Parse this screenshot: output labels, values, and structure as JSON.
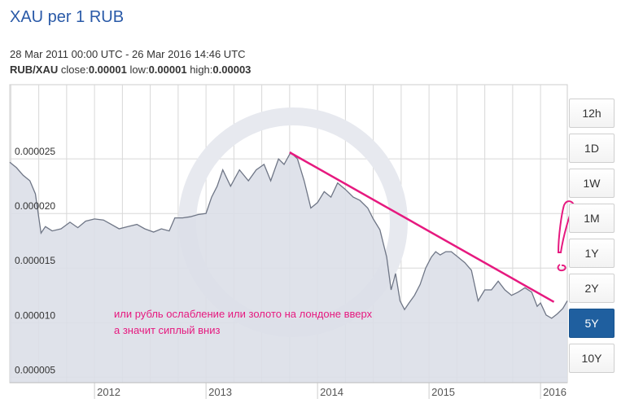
{
  "header": {
    "title": "XAU per 1 RUB",
    "date_range": "28 Mar 2011 00:00 UTC - 26 Mar 2016 14:46 UTC",
    "pair": "RUB/XAU",
    "close_label": "close:",
    "close_value": "0.00001",
    "low_label": "low:",
    "low_value": "0.00001",
    "high_label": "high:",
    "high_value": "0.00003"
  },
  "range_buttons": [
    {
      "label": "12h",
      "active": false
    },
    {
      "label": "1D",
      "active": false
    },
    {
      "label": "1W",
      "active": false
    },
    {
      "label": "1M",
      "active": false
    },
    {
      "label": "1Y",
      "active": false
    },
    {
      "label": "2Y",
      "active": false
    },
    {
      "label": "5Y",
      "active": true
    },
    {
      "label": "10Y",
      "active": false
    }
  ],
  "annotation": {
    "line1": "или рубль ослабление или золото на лондоне вверх",
    "line2": "а значит сиплый вниз",
    "color": "#e6197f"
  },
  "colors": {
    "area_fill": "#dcdfe8",
    "line": "#6f7686",
    "grid": "#d8d8d8",
    "accent": "#1f5f9f"
  },
  "chart_data": {
    "type": "area",
    "title": "XAU per 1 RUB",
    "xlabel": "",
    "ylabel": "",
    "ylim": [
      4.5e-06,
      3.18e-05
    ],
    "y_ticks": [
      {
        "value": 5e-06,
        "label": "0.000005"
      },
      {
        "value": 1e-05,
        "label": "0.000010"
      },
      {
        "value": 1.5e-05,
        "label": "0.000015"
      },
      {
        "value": 2e-05,
        "label": "0.000020"
      },
      {
        "value": 2.5e-05,
        "label": "0.000025"
      }
    ],
    "x_ticks": [
      {
        "value": 2012.0,
        "label": "2012"
      },
      {
        "value": 2013.0,
        "label": "2013"
      },
      {
        "value": 2014.0,
        "label": "2014"
      },
      {
        "value": 2015.0,
        "label": "2015"
      },
      {
        "value": 2016.0,
        "label": "2016"
      }
    ],
    "x": [
      2011.24,
      2011.3,
      2011.36,
      2011.42,
      2011.47,
      2011.52,
      2011.56,
      2011.62,
      2011.7,
      2011.78,
      2011.85,
      2011.92,
      2012.0,
      2012.08,
      2012.15,
      2012.22,
      2012.3,
      2012.38,
      2012.45,
      2012.53,
      2012.6,
      2012.67,
      2012.72,
      2012.79,
      2012.86,
      2012.93,
      2013.0,
      2013.05,
      2013.1,
      2013.15,
      2013.22,
      2013.3,
      2013.38,
      2013.45,
      2013.52,
      2013.58,
      2013.65,
      2013.7,
      2013.76,
      2013.82,
      2013.88,
      2013.94,
      2014.0,
      2014.06,
      2014.12,
      2014.18,
      2014.25,
      2014.32,
      2014.38,
      2014.45,
      2014.5,
      2014.56,
      2014.62,
      2014.66,
      2014.7,
      2014.74,
      2014.78,
      2014.82,
      2014.87,
      2014.92,
      2014.97,
      2015.02,
      2015.06,
      2015.1,
      2015.15,
      2015.2,
      2015.26,
      2015.32,
      2015.38,
      2015.44,
      2015.5,
      2015.56,
      2015.62,
      2015.68,
      2015.74,
      2015.8,
      2015.86,
      2015.92,
      2015.97,
      2016.0,
      2016.05,
      2016.1,
      2016.15,
      2016.2,
      2016.24
    ],
    "series": [
      {
        "values": [
          2.47e-05,
          2.42e-05,
          2.35e-05,
          2.3e-05,
          2.18e-05,
          1.82e-05,
          1.88e-05,
          1.84e-05,
          1.86e-05,
          1.92e-05,
          1.87e-05,
          1.93e-05,
          1.95e-05,
          1.94e-05,
          1.9e-05,
          1.86e-05,
          1.88e-05,
          1.9e-05,
          1.86e-05,
          1.83e-05,
          1.86e-05,
          1.84e-05,
          1.96e-05,
          1.96e-05,
          1.97e-05,
          1.99e-05,
          2e-05,
          2.15e-05,
          2.25e-05,
          2.4e-05,
          2.25e-05,
          2.4e-05,
          2.3e-05,
          2.4e-05,
          2.45e-05,
          2.3e-05,
          2.5e-05,
          2.45e-05,
          2.56e-05,
          2.5e-05,
          2.3e-05,
          2.05e-05,
          2.1e-05,
          2.2e-05,
          2.15e-05,
          2.28e-05,
          2.22e-05,
          2.15e-05,
          2.12e-05,
          2.05e-05,
          1.95e-05,
          1.85e-05,
          1.6e-05,
          1.3e-05,
          1.45e-05,
          1.2e-05,
          1.12e-05,
          1.18e-05,
          1.25e-05,
          1.35e-05,
          1.5e-05,
          1.6e-05,
          1.65e-05,
          1.62e-05,
          1.65e-05,
          1.65e-05,
          1.6e-05,
          1.55e-05,
          1.48e-05,
          1.2e-05,
          1.3e-05,
          1.3e-05,
          1.38e-05,
          1.3e-05,
          1.25e-05,
          1.28e-05,
          1.32e-05,
          1.28e-05,
          1.15e-05,
          1.18e-05,
          1.07e-05,
          1.04e-05,
          1.08e-05,
          1.13e-05,
          1.2e-05
        ]
      }
    ],
    "trendline": {
      "from": [
        2013.75,
        2.56e-05
      ],
      "to": [
        2016.12,
        1.19e-05
      ]
    }
  }
}
